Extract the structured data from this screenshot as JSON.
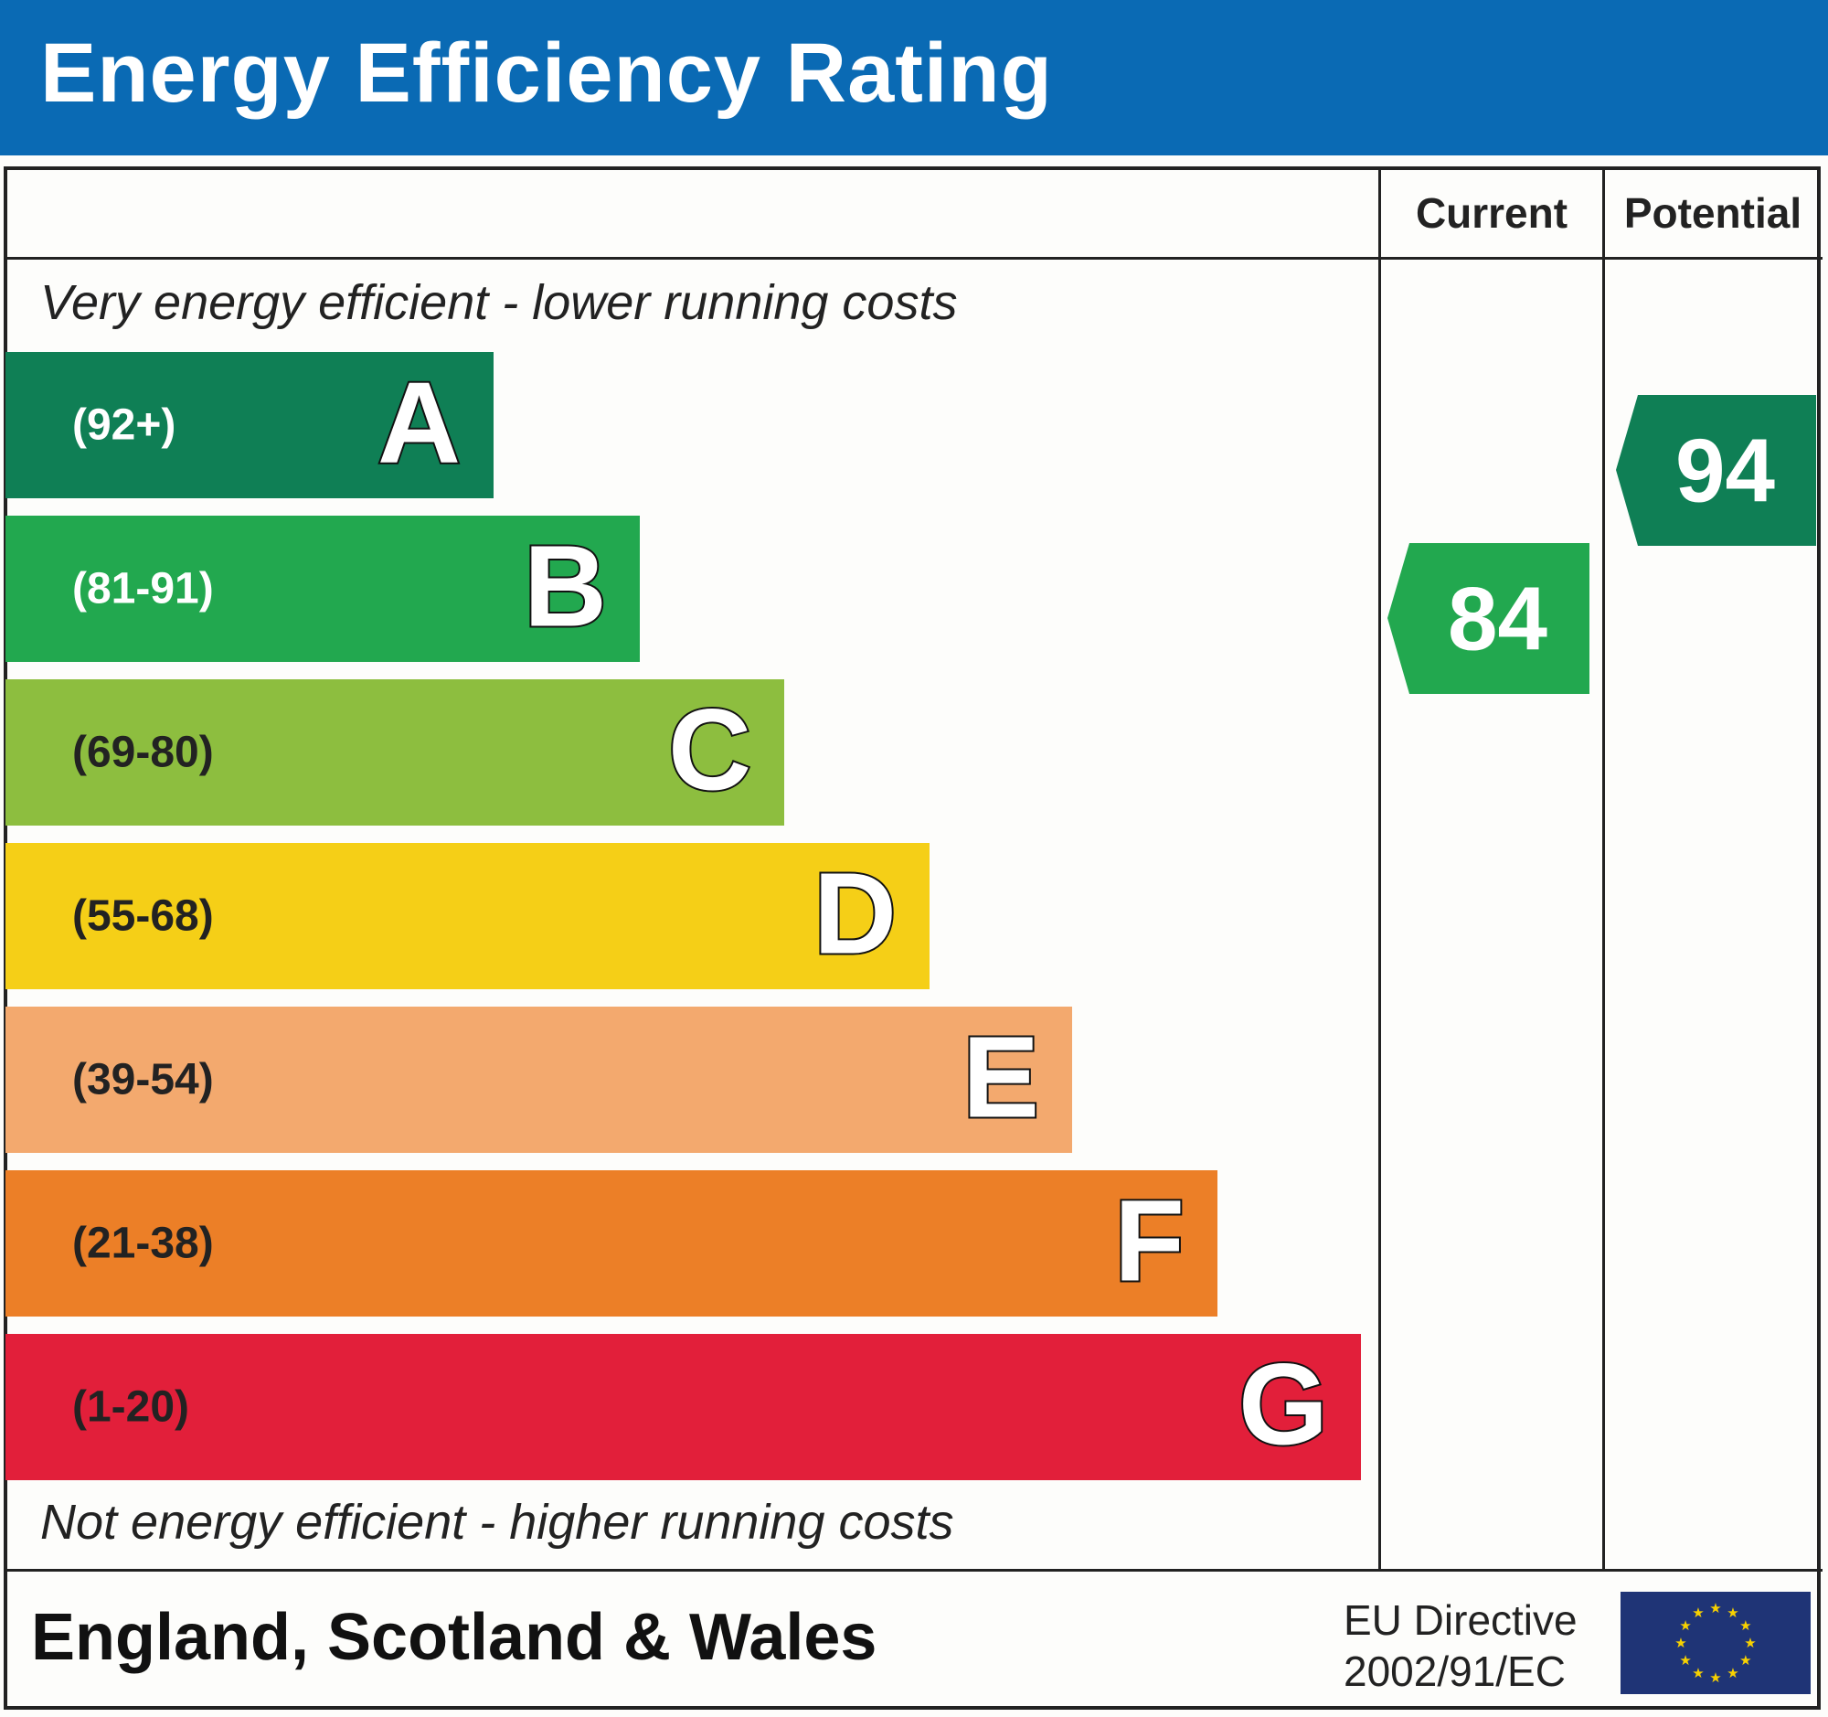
{
  "header": {
    "title": "Energy Efficiency Rating"
  },
  "columns": {
    "current": "Current",
    "potential": "Potential"
  },
  "notes": {
    "top": "Very energy efficient - lower running costs",
    "bottom": "Not energy efficient - higher running costs"
  },
  "footer": {
    "region": "England, Scotland & Wales",
    "directive_line1": "EU Directive",
    "directive_line2": "2002/91/EC",
    "flag_icon": "eu-flag-icon"
  },
  "colors": {
    "header": "#0a6ab4"
  },
  "chart_data": {
    "type": "bar",
    "title": "Energy Efficiency Rating",
    "bands": [
      {
        "letter": "A",
        "range": "(92+)",
        "color": "#0f7f55",
        "text_color": "#ffffff"
      },
      {
        "letter": "B",
        "range": "(81-91)",
        "color": "#22a84f",
        "text_color": "#ffffff"
      },
      {
        "letter": "C",
        "range": "(69-80)",
        "color": "#8dbe3f",
        "text_color": "#222222"
      },
      {
        "letter": "D",
        "range": "(55-68)",
        "color": "#f5cf17",
        "text_color": "#222222"
      },
      {
        "letter": "E",
        "range": "(39-54)",
        "color": "#f3a96e",
        "text_color": "#222222"
      },
      {
        "letter": "F",
        "range": "(21-38)",
        "color": "#ec7f27",
        "text_color": "#222222"
      },
      {
        "letter": "G",
        "range": "(1-20)",
        "color": "#e21f3a",
        "text_color": "#222222"
      }
    ],
    "current": {
      "value": "84",
      "band": "B",
      "color": "#22a84f"
    },
    "potential": {
      "value": "94",
      "band": "A",
      "color": "#0f7f55"
    }
  }
}
